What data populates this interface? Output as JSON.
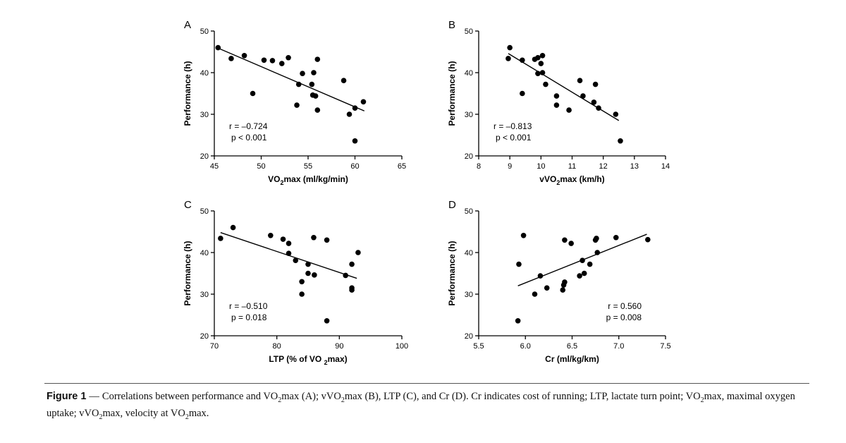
{
  "chart_data": [
    {
      "type": "scatter",
      "panel_label": "A",
      "xlabel_main": "VO",
      "xlabel_sub": "2",
      "xlabel_rest": "max (ml/kg/min)",
      "ylabel": "Performance (h)",
      "xlim": [
        45,
        65
      ],
      "ylim": [
        20,
        50
      ],
      "xticks": [
        45,
        50,
        55,
        60,
        65
      ],
      "yticks": [
        20,
        30,
        40,
        50
      ],
      "stats": {
        "r": "r = –0.724",
        "p": "p < 0.001"
      },
      "stats_align": "left",
      "fit": {
        "x": [
          45.3,
          61.0
        ],
        "y": [
          46.0,
          30.8
        ]
      },
      "points": [
        {
          "x": 45.4,
          "y": 46.0
        },
        {
          "x": 46.8,
          "y": 43.4
        },
        {
          "x": 48.2,
          "y": 44.1
        },
        {
          "x": 49.1,
          "y": 35.0
        },
        {
          "x": 50.3,
          "y": 43.0
        },
        {
          "x": 51.2,
          "y": 42.9
        },
        {
          "x": 52.2,
          "y": 42.2
        },
        {
          "x": 52.9,
          "y": 43.6
        },
        {
          "x": 53.8,
          "y": 32.2
        },
        {
          "x": 54.0,
          "y": 37.2
        },
        {
          "x": 54.4,
          "y": 39.8
        },
        {
          "x": 55.4,
          "y": 37.2
        },
        {
          "x": 55.5,
          "y": 34.6
        },
        {
          "x": 55.6,
          "y": 40.0
        },
        {
          "x": 55.8,
          "y": 34.4
        },
        {
          "x": 56.0,
          "y": 43.2
        },
        {
          "x": 56.0,
          "y": 31.0
        },
        {
          "x": 58.8,
          "y": 38.1
        },
        {
          "x": 59.4,
          "y": 30.0
        },
        {
          "x": 60.0,
          "y": 31.5
        },
        {
          "x": 60.0,
          "y": 23.6
        },
        {
          "x": 60.9,
          "y": 33.0
        }
      ]
    },
    {
      "type": "scatter",
      "panel_label": "B",
      "xlabel_main": "vVO",
      "xlabel_sub": "2",
      "xlabel_rest": "max (km/h)",
      "ylabel": "Performance (h)",
      "xlim": [
        8,
        14
      ],
      "ylim": [
        20,
        50
      ],
      "xticks": [
        8,
        9,
        10,
        11,
        12,
        13,
        14
      ],
      "yticks": [
        20,
        30,
        40,
        50
      ],
      "stats": {
        "r": "r = –0.813",
        "p": "p < 0.001"
      },
      "stats_align": "left",
      "fit": {
        "x": [
          8.95,
          12.5
        ],
        "y": [
          44.6,
          28.5
        ]
      },
      "points": [
        {
          "x": 8.95,
          "y": 43.4
        },
        {
          "x": 9.0,
          "y": 46.0
        },
        {
          "x": 9.4,
          "y": 43.0
        },
        {
          "x": 9.4,
          "y": 35.0
        },
        {
          "x": 9.8,
          "y": 43.2
        },
        {
          "x": 9.9,
          "y": 43.6
        },
        {
          "x": 9.9,
          "y": 39.8
        },
        {
          "x": 10.0,
          "y": 42.2
        },
        {
          "x": 10.05,
          "y": 44.1
        },
        {
          "x": 10.05,
          "y": 40.0
        },
        {
          "x": 10.15,
          "y": 37.2
        },
        {
          "x": 10.5,
          "y": 34.4
        },
        {
          "x": 10.5,
          "y": 32.2
        },
        {
          "x": 10.9,
          "y": 31.0
        },
        {
          "x": 11.25,
          "y": 38.1
        },
        {
          "x": 11.35,
          "y": 34.4
        },
        {
          "x": 11.7,
          "y": 32.9
        },
        {
          "x": 11.75,
          "y": 37.2
        },
        {
          "x": 11.85,
          "y": 31.5
        },
        {
          "x": 12.4,
          "y": 30.0
        },
        {
          "x": 12.55,
          "y": 23.6
        }
      ]
    },
    {
      "type": "scatter",
      "panel_label": "C",
      "xlabel_main": "LTP (% of VO ",
      "xlabel_sub": "2",
      "xlabel_rest": "max)",
      "ylabel": "Performance (h)",
      "xlim": [
        70,
        100
      ],
      "ylim": [
        20,
        50
      ],
      "xticks": [
        70,
        80,
        90,
        100
      ],
      "yticks": [
        20,
        30,
        40,
        50
      ],
      "stats": {
        "r": "r = –0.510",
        "p": "p = 0.018"
      },
      "stats_align": "left",
      "fit": {
        "x": [
          71.0,
          92.8
        ],
        "y": [
          44.8,
          33.8
        ]
      },
      "points": [
        {
          "x": 71.0,
          "y": 43.4
        },
        {
          "x": 73.0,
          "y": 46.0
        },
        {
          "x": 79.0,
          "y": 44.1
        },
        {
          "x": 81.0,
          "y": 43.2
        },
        {
          "x": 81.9,
          "y": 42.2
        },
        {
          "x": 81.9,
          "y": 39.8
        },
        {
          "x": 83.0,
          "y": 38.1
        },
        {
          "x": 84.0,
          "y": 33.0
        },
        {
          "x": 84.0,
          "y": 30.0
        },
        {
          "x": 85.0,
          "y": 37.2
        },
        {
          "x": 85.0,
          "y": 35.0
        },
        {
          "x": 85.9,
          "y": 43.6
        },
        {
          "x": 86.0,
          "y": 34.6
        },
        {
          "x": 88.0,
          "y": 43.0
        },
        {
          "x": 88.0,
          "y": 23.6
        },
        {
          "x": 91.0,
          "y": 34.5
        },
        {
          "x": 92.0,
          "y": 37.2
        },
        {
          "x": 92.0,
          "y": 31.5
        },
        {
          "x": 92.0,
          "y": 31.0
        },
        {
          "x": 93.0,
          "y": 40.0
        }
      ]
    },
    {
      "type": "scatter",
      "panel_label": "D",
      "xlabel_main": "Cr (ml/kg/km)",
      "xlabel_sub": "",
      "xlabel_rest": "",
      "ylabel": "Performance (h)",
      "xlim": [
        5.5,
        7.5
      ],
      "ylim": [
        20,
        50
      ],
      "xticks": [
        5.5,
        6.0,
        6.5,
        7.0,
        7.5
      ],
      "yticks": [
        20,
        30,
        40,
        50
      ],
      "stats": {
        "r": "r = 0.560",
        "p": "p = 0.008"
      },
      "stats_align": "right",
      "fit": {
        "x": [
          5.92,
          7.3
        ],
        "y": [
          32.0,
          44.4
        ]
      },
      "points": [
        {
          "x": 5.92,
          "y": 23.6
        },
        {
          "x": 5.93,
          "y": 37.2
        },
        {
          "x": 5.98,
          "y": 44.1
        },
        {
          "x": 6.1,
          "y": 30.0
        },
        {
          "x": 6.16,
          "y": 34.4
        },
        {
          "x": 6.23,
          "y": 31.5
        },
        {
          "x": 6.4,
          "y": 31.0
        },
        {
          "x": 6.41,
          "y": 32.2
        },
        {
          "x": 6.42,
          "y": 43.0
        },
        {
          "x": 6.42,
          "y": 32.9
        },
        {
          "x": 6.49,
          "y": 42.2
        },
        {
          "x": 6.58,
          "y": 34.4
        },
        {
          "x": 6.61,
          "y": 38.1
        },
        {
          "x": 6.63,
          "y": 35.0
        },
        {
          "x": 6.69,
          "y": 37.2
        },
        {
          "x": 6.75,
          "y": 43.0
        },
        {
          "x": 6.76,
          "y": 43.4
        },
        {
          "x": 6.77,
          "y": 40.0
        },
        {
          "x": 6.97,
          "y": 43.6
        },
        {
          "x": 7.31,
          "y": 43.1
        }
      ]
    }
  ],
  "caption": {
    "label": "Figure 1",
    "dash": "—",
    "parts": [
      "Correlations between performance and VO",
      "2",
      "max (A); vVO",
      "2",
      "max (B), LTP (C), and Cr (D). Cr indicates cost of running; LTP, lactate turn point; VO",
      "2",
      "max, maximal oxygen uptake; vVO",
      "2",
      "max, velocity at VO",
      "2",
      "max."
    ]
  }
}
